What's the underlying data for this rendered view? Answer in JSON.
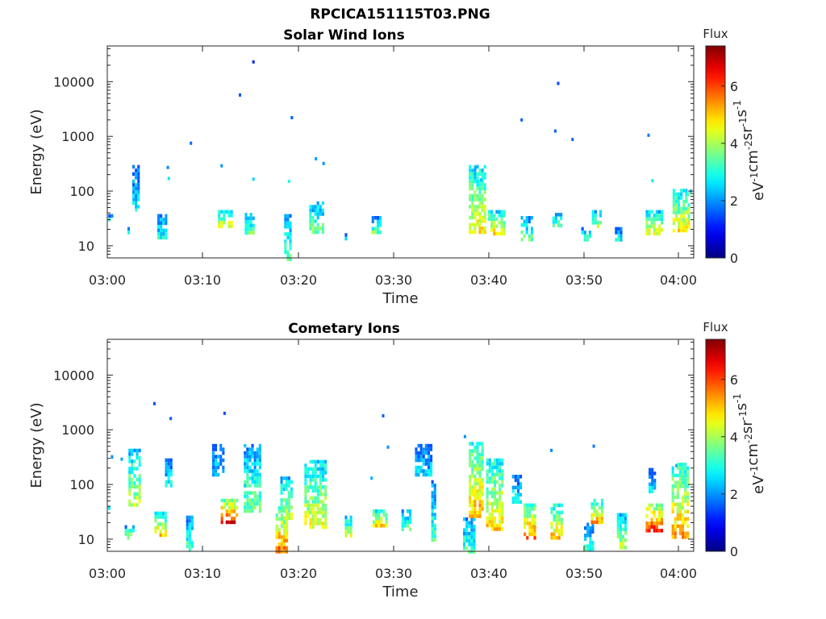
{
  "figure": {
    "title": "RPCICA151115T03.PNG",
    "background": "#ffffff"
  },
  "chart_data": [
    {
      "type": "heatmap",
      "title": "Solar Wind Ions",
      "xlabel": "Time",
      "ylabel": "Energy (eV)",
      "x_ticks": [
        "03:00",
        "03:10",
        "03:20",
        "03:30",
        "03:40",
        "03:50",
        "04:00"
      ],
      "y_ticks": [
        "10",
        "100",
        "1000",
        "10000"
      ],
      "y_scale": "log",
      "ylim": [
        6,
        45000
      ],
      "xlim_minutes": [
        0,
        61
      ],
      "colorbar": {
        "label": "Flux",
        "unit": "eV-1 cm-2 sr-1 s-1",
        "ticks": [
          "0",
          "2",
          "4",
          "6"
        ],
        "range": [
          0,
          7.4
        ],
        "colormap": "jet"
      },
      "clusters": [
        {
          "t0": 0.1,
          "t1": 0.4,
          "e0": 30,
          "e1": 38,
          "v": 3.0
        },
        {
          "t0": 2.1,
          "t1": 2.3,
          "e0": 18,
          "e1": 22,
          "v": 2.9
        },
        {
          "t0": 2.6,
          "t1": 3.3,
          "e0": 50,
          "e1": 300,
          "v": 2.7
        },
        {
          "t0": 5.2,
          "t1": 6.1,
          "e0": 14,
          "e1": 38,
          "v": 3.1
        },
        {
          "t0": 11.5,
          "t1": 13.0,
          "e0": 22,
          "e1": 45,
          "v": 4.8
        },
        {
          "t0": 14.3,
          "t1": 15.2,
          "e0": 18,
          "e1": 40,
          "v": 3.6
        },
        {
          "t0": 18.4,
          "t1": 19.0,
          "e0": 6,
          "e1": 38,
          "v": 3.6
        },
        {
          "t0": 21.0,
          "t1": 22.4,
          "e0": 18,
          "e1": 65,
          "v": 3.8
        },
        {
          "t0": 24.7,
          "t1": 24.9,
          "e0": 13,
          "e1": 17,
          "v": 3.4
        },
        {
          "t0": 27.5,
          "t1": 28.5,
          "e0": 18,
          "e1": 35,
          "v": 3.6
        },
        {
          "t0": 37.6,
          "t1": 39.2,
          "e0": 18,
          "e1": 300,
          "v": 4.7
        },
        {
          "t0": 39.6,
          "t1": 41.3,
          "e0": 18,
          "e1": 45,
          "v": 4.9
        },
        {
          "t0": 43.0,
          "t1": 44.3,
          "e0": 13,
          "e1": 35,
          "v": 3.7
        },
        {
          "t0": 46.3,
          "t1": 47.2,
          "e0": 22,
          "e1": 40,
          "v": 3.8
        },
        {
          "t0": 49.3,
          "t1": 50.1,
          "e0": 13,
          "e1": 22,
          "v": 3.4
        },
        {
          "t0": 50.4,
          "t1": 51.2,
          "e0": 22,
          "e1": 45,
          "v": 4.3
        },
        {
          "t0": 52.8,
          "t1": 53.4,
          "e0": 13,
          "e1": 22,
          "v": 3.0
        },
        {
          "t0": 56.0,
          "t1": 57.8,
          "e0": 18,
          "e1": 45,
          "v": 4.6
        },
        {
          "t0": 58.8,
          "t1": 60.4,
          "e0": 18,
          "e1": 110,
          "v": 4.9
        }
      ],
      "points": [
        {
          "t": 15.2,
          "e": 23000,
          "v": 1.2
        },
        {
          "t": 13.8,
          "e": 5700,
          "v": 1.5
        },
        {
          "t": 19.2,
          "e": 2200,
          "v": 1.6
        },
        {
          "t": 8.7,
          "e": 750,
          "v": 1.7
        },
        {
          "t": 6.3,
          "e": 270,
          "v": 1.9
        },
        {
          "t": 11.9,
          "e": 290,
          "v": 2.0
        },
        {
          "t": 21.7,
          "e": 390,
          "v": 2.1
        },
        {
          "t": 22.5,
          "e": 320,
          "v": 2.0
        },
        {
          "t": 15.2,
          "e": 165,
          "v": 2.5
        },
        {
          "t": 18.9,
          "e": 150,
          "v": 2.9
        },
        {
          "t": 43.1,
          "e": 2000,
          "v": 1.6
        },
        {
          "t": 46.9,
          "e": 9300,
          "v": 1.4
        },
        {
          "t": 46.6,
          "e": 1250,
          "v": 1.6
        },
        {
          "t": 48.4,
          "e": 880,
          "v": 1.7
        },
        {
          "t": 56.3,
          "e": 1050,
          "v": 1.8
        },
        {
          "t": 56.7,
          "e": 155,
          "v": 2.7
        },
        {
          "t": 60.7,
          "e": 100,
          "v": 2.3
        },
        {
          "t": 38.3,
          "e": 270,
          "v": 2.2
        },
        {
          "t": 38.9,
          "e": 160,
          "v": 2.4
        },
        {
          "t": 6.4,
          "e": 170,
          "v": 2.6
        },
        {
          "t": 3.0,
          "e": 45,
          "v": 3.2
        }
      ]
    },
    {
      "type": "heatmap",
      "title": "Cometary Ions",
      "xlabel": "Time",
      "ylabel": "Energy (eV)",
      "x_ticks": [
        "03:00",
        "03:10",
        "03:20",
        "03:30",
        "03:40",
        "03:50",
        "04:00"
      ],
      "y_ticks": [
        "10",
        "100",
        "1000",
        "10000"
      ],
      "y_scale": "log",
      "ylim": [
        6,
        45000
      ],
      "xlim_minutes": [
        0,
        61
      ],
      "colorbar": {
        "label": "Flux",
        "unit": "eV-1 cm-2 sr-1 s-1",
        "ticks": [
          "0",
          "2",
          "4",
          "6"
        ],
        "range": [
          0,
          7.4
        ],
        "colormap": "jet"
      },
      "clusters": [
        {
          "t0": 0.1,
          "t1": 0.5,
          "e0": 280,
          "e1": 400,
          "v": 2.3
        },
        {
          "t0": 1.8,
          "t1": 2.6,
          "e0": 11,
          "e1": 18,
          "v": 4.0
        },
        {
          "t0": 2.2,
          "t1": 3.4,
          "e0": 40,
          "e1": 450,
          "v": 4.3
        },
        {
          "t0": 4.9,
          "t1": 6.2,
          "e0": 11,
          "e1": 32,
          "v": 5.3
        },
        {
          "t0": 6.0,
          "t1": 6.6,
          "e0": 90,
          "e1": 300,
          "v": 3.0
        },
        {
          "t0": 8.2,
          "t1": 8.8,
          "e0": 6,
          "e1": 27,
          "v": 3.5
        },
        {
          "t0": 10.9,
          "t1": 12.0,
          "e0": 150,
          "e1": 550,
          "v": 2.6
        },
        {
          "t0": 11.8,
          "t1": 13.6,
          "e0": 22,
          "e1": 55,
          "v": 6.5
        },
        {
          "t0": 14.2,
          "t1": 15.8,
          "e0": 35,
          "e1": 550,
          "v": 3.6
        },
        {
          "t0": 17.5,
          "t1": 18.8,
          "e0": 6,
          "e1": 40,
          "v": 5.8
        },
        {
          "t0": 18.0,
          "t1": 19.1,
          "e0": 25,
          "e1": 140,
          "v": 4.3
        },
        {
          "t0": 20.5,
          "t1": 22.8,
          "e0": 16,
          "e1": 280,
          "v": 4.6
        },
        {
          "t0": 24.7,
          "t1": 25.3,
          "e0": 11,
          "e1": 27,
          "v": 4.5
        },
        {
          "t0": 27.6,
          "t1": 29.0,
          "e0": 18,
          "e1": 35,
          "v": 5.0
        },
        {
          "t0": 30.6,
          "t1": 31.4,
          "e0": 16,
          "e1": 35,
          "v": 3.6
        },
        {
          "t0": 32.0,
          "t1": 33.8,
          "e0": 150,
          "e1": 550,
          "v": 2.6
        },
        {
          "t0": 33.7,
          "t1": 34.2,
          "e0": 10,
          "e1": 120,
          "v": 3.4
        },
        {
          "t0": 37.0,
          "t1": 38.3,
          "e0": 6,
          "e1": 25,
          "v": 3.4
        },
        {
          "t0": 37.6,
          "t1": 39.0,
          "e0": 25,
          "e1": 600,
          "v": 5.4
        },
        {
          "t0": 39.4,
          "t1": 41.2,
          "e0": 16,
          "e1": 300,
          "v": 5.0
        },
        {
          "t0": 42.1,
          "t1": 43.0,
          "e0": 45,
          "e1": 150,
          "v": 3.0
        },
        {
          "t0": 43.3,
          "t1": 44.6,
          "e0": 11,
          "e1": 45,
          "v": 5.7
        },
        {
          "t0": 46.1,
          "t1": 47.3,
          "e0": 11,
          "e1": 45,
          "v": 5.1
        },
        {
          "t0": 49.6,
          "t1": 50.6,
          "e0": 6,
          "e1": 20,
          "v": 3.3
        },
        {
          "t0": 50.3,
          "t1": 51.6,
          "e0": 22,
          "e1": 55,
          "v": 5.2
        },
        {
          "t0": 53.0,
          "t1": 53.8,
          "e0": 7,
          "e1": 30,
          "v": 4.3
        },
        {
          "t0": 56.0,
          "t1": 57.7,
          "e0": 14,
          "e1": 45,
          "v": 6.6
        },
        {
          "t0": 56.3,
          "t1": 57.0,
          "e0": 80,
          "e1": 200,
          "v": 2.8
        },
        {
          "t0": 58.7,
          "t1": 60.5,
          "e0": 11,
          "e1": 250,
          "v": 5.4
        }
      ],
      "points": [
        {
          "t": 4.9,
          "e": 3000,
          "v": 1.5
        },
        {
          "t": 6.6,
          "e": 1600,
          "v": 1.6
        },
        {
          "t": 12.2,
          "e": 2000,
          "v": 1.5
        },
        {
          "t": 28.7,
          "e": 1800,
          "v": 1.6
        },
        {
          "t": 37.2,
          "e": 750,
          "v": 2.0
        },
        {
          "t": 50.6,
          "e": 500,
          "v": 1.8
        },
        {
          "t": 29.2,
          "e": 480,
          "v": 2.0
        },
        {
          "t": 46.2,
          "e": 420,
          "v": 1.9
        },
        {
          "t": 27.5,
          "e": 130,
          "v": 2.2
        },
        {
          "t": 1.5,
          "e": 290,
          "v": 2.1
        },
        {
          "t": 59.2,
          "e": 220,
          "v": 2.3
        },
        {
          "t": 0.2,
          "e": 37,
          "v": 2.6
        }
      ]
    }
  ]
}
